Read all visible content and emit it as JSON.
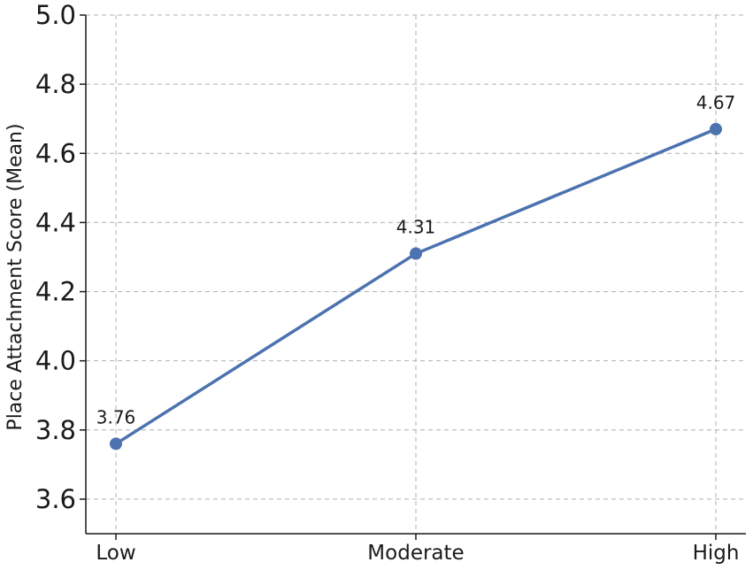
{
  "chart_data": {
    "type": "line",
    "title": "",
    "xlabel": "",
    "ylabel": "Place Attachment Score (Mean)",
    "categories": [
      "Low",
      "Moderate",
      "High"
    ],
    "series": [
      {
        "values": [
          3.76,
          4.31,
          4.67
        ],
        "data_labels": [
          "3.76",
          "4.31",
          "4.67"
        ],
        "color": "#4c72b0"
      }
    ],
    "ylim": [
      3.5,
      5.0
    ],
    "yticks": [
      3.6,
      3.8,
      4.0,
      4.2,
      4.4,
      4.6,
      4.8,
      5.0
    ],
    "ytick_labels": [
      "3.6",
      "3.8",
      "4.0",
      "4.2",
      "4.4",
      "4.6",
      "4.8",
      "5.0"
    ],
    "grid": true,
    "legend": "none"
  }
}
